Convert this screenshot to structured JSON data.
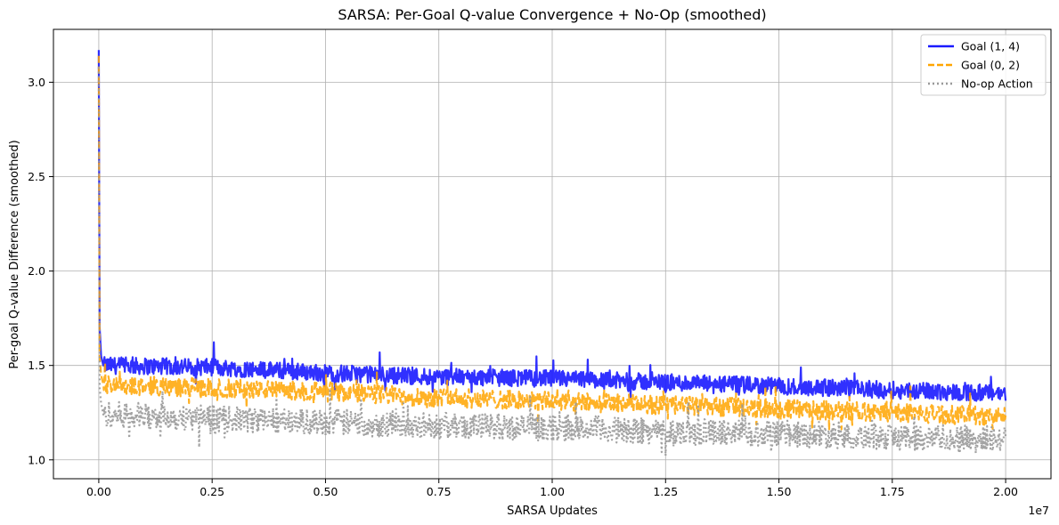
{
  "chart_data": {
    "type": "line",
    "title": "SARSA: Per-Goal Q-value Convergence + No-Op (smoothed)",
    "xlabel": "SARSA Updates",
    "ylabel": "Per-goal Q-value Difference (smoothed)",
    "x_offset_text": "1e7",
    "xlim": [
      -0.1,
      2.1
    ],
    "ylim": [
      0.9,
      3.28
    ],
    "x_ticks": [
      0.0,
      0.25,
      0.5,
      0.75,
      1.0,
      1.25,
      1.5,
      1.75,
      2.0
    ],
    "x_tick_labels": [
      "0.00",
      "0.25",
      "0.50",
      "0.75",
      "1.00",
      "1.25",
      "1.50",
      "1.75",
      "2.00"
    ],
    "y_ticks": [
      1.0,
      1.5,
      2.0,
      2.5,
      3.0
    ],
    "y_tick_labels": [
      "1.0",
      "1.5",
      "2.0",
      "2.5",
      "3.0"
    ],
    "grid": true,
    "legend_position": "top-right",
    "series": [
      {
        "name": "Goal (1, 4)",
        "color": "#1a1aff",
        "style": "solid",
        "x": [
          0.0,
          0.002,
          0.005,
          0.01,
          0.25,
          0.5,
          0.75,
          1.0,
          1.25,
          1.5,
          1.75,
          2.0
        ],
        "values": [
          3.17,
          1.7,
          1.55,
          1.5,
          1.49,
          1.46,
          1.44,
          1.43,
          1.41,
          1.39,
          1.37,
          1.35
        ],
        "noise": 0.045
      },
      {
        "name": "Goal (0, 2)",
        "color": "#ffa500",
        "style": "dashed",
        "x": [
          0.0,
          0.002,
          0.005,
          0.01,
          0.25,
          0.5,
          0.75,
          1.0,
          1.25,
          1.5,
          1.75,
          2.0
        ],
        "values": [
          3.14,
          1.55,
          1.45,
          1.4,
          1.38,
          1.36,
          1.33,
          1.31,
          1.29,
          1.27,
          1.25,
          1.23
        ],
        "noise": 0.05
      },
      {
        "name": "No-op Action",
        "color": "#999999",
        "style": "dotted",
        "x": [
          0.0,
          0.002,
          0.005,
          0.01,
          0.25,
          0.5,
          0.75,
          1.0,
          1.25,
          1.5,
          1.75,
          2.0
        ],
        "values": [
          3.08,
          1.38,
          1.3,
          1.24,
          1.22,
          1.2,
          1.18,
          1.17,
          1.15,
          1.14,
          1.12,
          1.11
        ],
        "noise": 0.07
      }
    ]
  }
}
